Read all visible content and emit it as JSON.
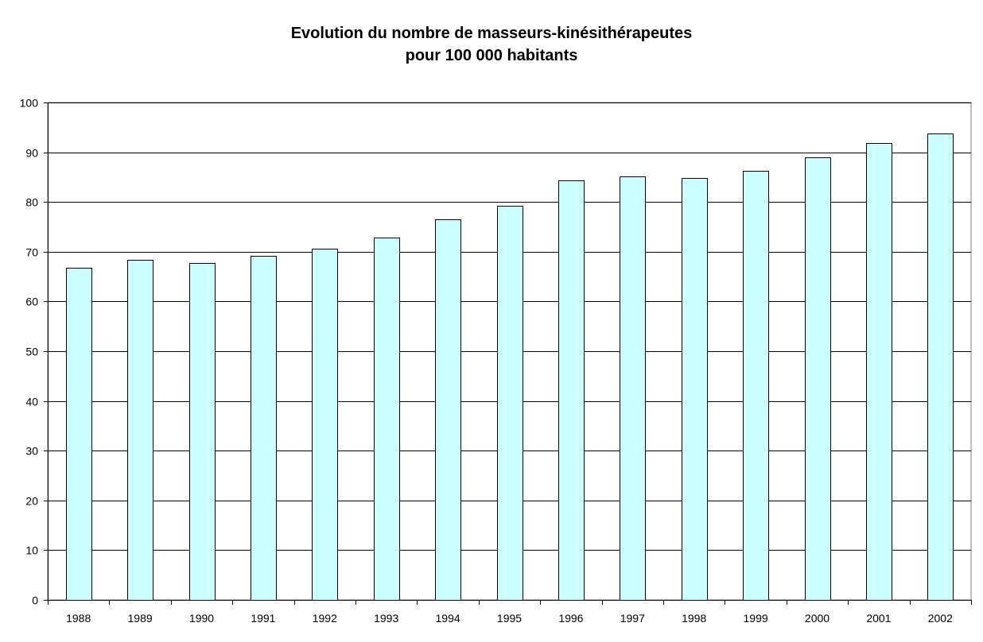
{
  "chart_data": {
    "type": "bar",
    "title": "Evolution du nombre de masseurs-kinésithérapeutes",
    "subtitle": "pour 100 000 habitants",
    "xlabel": "",
    "ylabel": "",
    "categories": [
      "1988",
      "1989",
      "1990",
      "1991",
      "1992",
      "1993",
      "1994",
      "1995",
      "1996",
      "1997",
      "1998",
      "1999",
      "2000",
      "2001",
      "2002"
    ],
    "values": [
      66.7,
      68.4,
      67.7,
      69.1,
      70.6,
      72.9,
      76.5,
      79.3,
      84.3,
      85.2,
      84.8,
      86.3,
      89.0,
      91.9,
      93.8
    ],
    "ylim": [
      0,
      100
    ],
    "yticks": [
      0,
      10,
      20,
      30,
      40,
      50,
      60,
      70,
      80,
      90,
      100
    ],
    "grid": true,
    "legend": "none",
    "bar_color": "#ccffff",
    "bar_border_color": "#000000"
  }
}
